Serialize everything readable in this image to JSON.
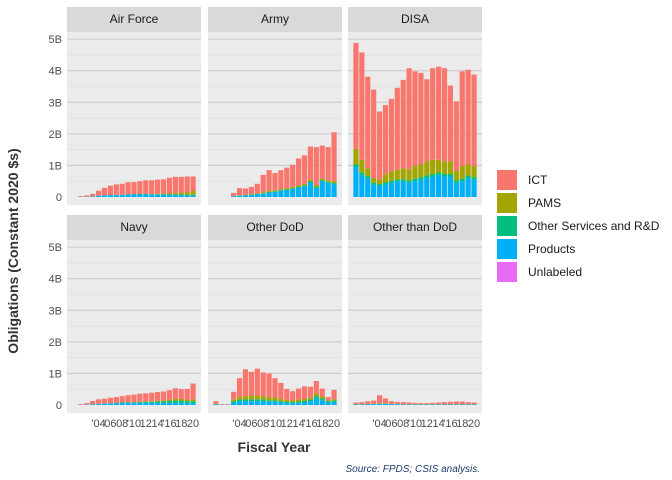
{
  "chart_data": {
    "type": "bar",
    "stacked": true,
    "facets": [
      "Air Force",
      "Army",
      "DISA",
      "Navy",
      "Other DoD",
      "Other than DoD"
    ],
    "years": [
      2000,
      2001,
      2002,
      2003,
      2004,
      2005,
      2006,
      2007,
      2008,
      2009,
      2010,
      2011,
      2012,
      2013,
      2014,
      2015,
      2016,
      2017,
      2018,
      2019,
      2020
    ],
    "x_tick_labels": [
      "'04",
      "06",
      "08",
      "'10",
      "12",
      "14",
      "'16",
      "18",
      "20"
    ],
    "x_tick_years": [
      2004,
      2006,
      2008,
      2010,
      2012,
      2014,
      2016,
      2018,
      2020
    ],
    "y_tick_labels": [
      "0",
      "1B",
      "2B",
      "3B",
      "4B",
      "5B"
    ],
    "y_tick_values": [
      0,
      1,
      2,
      3,
      4,
      5
    ],
    "ylim": [
      0,
      5.1
    ],
    "ylabel": "Obligations (Constant 2020 $s)",
    "xlabel": "Fiscal Year",
    "source": "Source: FPDS; CSIS analysis.",
    "legend_position": "right",
    "grid": true,
    "series": [
      {
        "name": "ICT",
        "color": "#F8766D"
      },
      {
        "name": "PAMS",
        "color": "#A3A500"
      },
      {
        "name": "Other Services and R&D",
        "color": "#00BF7D"
      },
      {
        "name": "Products",
        "color": "#00B0F6"
      },
      {
        "name": "Unlabeled",
        "color": "#E76BF3"
      }
    ],
    "data": {
      "Air Force": {
        "ICT": [
          0,
          0.02,
          0.04,
          0.08,
          0.16,
          0.24,
          0.3,
          0.33,
          0.35,
          0.38,
          0.38,
          0.4,
          0.43,
          0.44,
          0.45,
          0.45,
          0.5,
          0.52,
          0.5,
          0.5,
          0.46
        ],
        "PAMS": [
          0,
          0,
          0,
          0,
          0,
          0,
          0,
          0,
          0,
          0,
          0,
          0,
          0,
          0,
          0.01,
          0.02,
          0.03,
          0.04,
          0.06,
          0.08,
          0.12
        ],
        "Other Services and R&D": [
          0,
          0,
          0,
          0,
          0,
          0,
          0,
          0.01,
          0.01,
          0.01,
          0.01,
          0.02,
          0.02,
          0.02,
          0.02,
          0.02,
          0.02,
          0.02,
          0.02,
          0.02,
          0.02
        ],
        "Products": [
          0,
          0.01,
          0.01,
          0.02,
          0.04,
          0.05,
          0.06,
          0.06,
          0.06,
          0.08,
          0.08,
          0.08,
          0.08,
          0.07,
          0.07,
          0.07,
          0.06,
          0.06,
          0.06,
          0.05,
          0.05
        ],
        "Unlabeled": [
          0,
          0,
          0,
          0,
          0,
          0,
          0,
          0,
          0,
          0,
          0,
          0,
          0,
          0,
          0,
          0,
          0,
          0,
          0,
          0,
          0
        ]
      },
      "Army": {
        "ICT": [
          0,
          0,
          0,
          0.1,
          0.22,
          0.2,
          0.23,
          0.3,
          0.55,
          0.65,
          0.55,
          0.6,
          0.65,
          0.7,
          0.85,
          0.9,
          1.05,
          1.2,
          1.05,
          1.05,
          1.55
        ],
        "PAMS": [
          0,
          0,
          0,
          0,
          0.01,
          0.01,
          0.02,
          0.02,
          0.03,
          0.04,
          0.03,
          0.03,
          0.04,
          0.04,
          0.05,
          0.05,
          0.06,
          0.06,
          0.05,
          0.05,
          0.06
        ],
        "Other Services and R&D": [
          0,
          0,
          0,
          0.01,
          0.01,
          0.01,
          0.01,
          0.02,
          0.02,
          0.02,
          0.02,
          0.02,
          0.02,
          0.02,
          0.02,
          0.03,
          0.03,
          0.04,
          0.03,
          0.03,
          0.04
        ],
        "Products": [
          0,
          0,
          0,
          0.02,
          0.04,
          0.05,
          0.06,
          0.08,
          0.1,
          0.14,
          0.16,
          0.2,
          0.22,
          0.26,
          0.3,
          0.34,
          0.46,
          0.28,
          0.5,
          0.45,
          0.4
        ],
        "Unlabeled": [
          0,
          0,
          0,
          0,
          0,
          0,
          0,
          0,
          0,
          0,
          0,
          0,
          0,
          0,
          0,
          0,
          0,
          0,
          0,
          0,
          0
        ]
      },
      "DISA": {
        "ICT": [
          3.35,
          3.4,
          2.9,
          2.8,
          2.15,
          2.2,
          2.3,
          2.6,
          2.8,
          3.2,
          3.0,
          2.9,
          2.6,
          2.9,
          2.95,
          2.95,
          2.4,
          2.2,
          3.0,
          3.0,
          2.9
        ],
        "PAMS": [
          0.5,
          0.4,
          0.25,
          0.15,
          0.15,
          0.25,
          0.3,
          0.3,
          0.35,
          0.35,
          0.4,
          0.4,
          0.45,
          0.45,
          0.4,
          0.4,
          0.4,
          0.3,
          0.4,
          0.35,
          0.35
        ],
        "Other Services and R&D": [
          0.08,
          0.08,
          0.06,
          0.05,
          0.06,
          0.06,
          0.06,
          0.06,
          0.06,
          0.08,
          0.08,
          0.08,
          0.08,
          0.08,
          0.08,
          0.08,
          0.08,
          0.08,
          0.08,
          0.08,
          0.08
        ],
        "Products": [
          0.95,
          0.7,
          0.6,
          0.4,
          0.35,
          0.4,
          0.45,
          0.5,
          0.5,
          0.45,
          0.5,
          0.55,
          0.6,
          0.65,
          0.7,
          0.65,
          0.65,
          0.45,
          0.5,
          0.6,
          0.55
        ],
        "Unlabeled": [
          0,
          0,
          0,
          0,
          0,
          0,
          0,
          0,
          0,
          0,
          0,
          0,
          0,
          0,
          0,
          0,
          0,
          0,
          0,
          0,
          0
        ]
      },
      "Navy": {
        "ICT": [
          0,
          0.02,
          0.05,
          0.1,
          0.14,
          0.15,
          0.17,
          0.18,
          0.2,
          0.22,
          0.24,
          0.25,
          0.26,
          0.27,
          0.28,
          0.29,
          0.3,
          0.33,
          0.32,
          0.35,
          0.5
        ],
        "PAMS": [
          0,
          0,
          0,
          0,
          0,
          0,
          0,
          0,
          0,
          0.01,
          0.01,
          0.01,
          0.01,
          0.02,
          0.02,
          0.03,
          0.04,
          0.06,
          0.05,
          0.04,
          0.06
        ],
        "Other Services and R&D": [
          0,
          0,
          0,
          0.01,
          0.01,
          0.01,
          0.01,
          0.02,
          0.02,
          0.02,
          0.02,
          0.03,
          0.03,
          0.03,
          0.04,
          0.04,
          0.06,
          0.07,
          0.07,
          0.06,
          0.06
        ],
        "Products": [
          0,
          0.01,
          0.01,
          0.02,
          0.03,
          0.04,
          0.05,
          0.05,
          0.06,
          0.06,
          0.06,
          0.07,
          0.07,
          0.07,
          0.07,
          0.07,
          0.07,
          0.07,
          0.07,
          0.06,
          0.06
        ],
        "Unlabeled": [
          0,
          0,
          0,
          0,
          0,
          0,
          0,
          0,
          0,
          0,
          0,
          0,
          0,
          0,
          0,
          0,
          0,
          0,
          0,
          0,
          0
        ]
      },
      "Other DoD": {
        "ICT": [
          0.08,
          0.02,
          0.02,
          0.25,
          0.6,
          0.85,
          0.75,
          0.85,
          0.75,
          0.75,
          0.6,
          0.5,
          0.35,
          0.3,
          0.35,
          0.4,
          0.35,
          0.4,
          0.25,
          0.1,
          0.3
        ],
        "PAMS": [
          0.01,
          0,
          0,
          0.05,
          0.08,
          0.1,
          0.12,
          0.12,
          0.1,
          0.1,
          0.1,
          0.08,
          0.06,
          0.05,
          0.06,
          0.06,
          0.06,
          0.08,
          0.06,
          0.03,
          0.04
        ],
        "Other Services and R&D": [
          0.01,
          0,
          0,
          0.04,
          0.05,
          0.06,
          0.06,
          0.06,
          0.06,
          0.05,
          0.05,
          0.04,
          0.04,
          0.03,
          0.04,
          0.05,
          0.05,
          0.08,
          0.06,
          0.04,
          0.04
        ],
        "Products": [
          0.02,
          0.01,
          0.01,
          0.08,
          0.12,
          0.12,
          0.12,
          0.12,
          0.12,
          0.1,
          0.1,
          0.08,
          0.06,
          0.06,
          0.07,
          0.08,
          0.12,
          0.2,
          0.15,
          0.08,
          0.1
        ],
        "Unlabeled": [
          0,
          0,
          0,
          0,
          0,
          0,
          0,
          0,
          0,
          0,
          0,
          0,
          0,
          0,
          0,
          0,
          0,
          0,
          0,
          0,
          0
        ]
      },
      "Other than DoD": {
        "ICT": [
          0.05,
          0.06,
          0.08,
          0.1,
          0.25,
          0.15,
          0.08,
          0.06,
          0.06,
          0.05,
          0.04,
          0.03,
          0.03,
          0.04,
          0.05,
          0.06,
          0.07,
          0.08,
          0.08,
          0.06,
          0.05
        ],
        "PAMS": [
          0.01,
          0.01,
          0.01,
          0.01,
          0.02,
          0.02,
          0.01,
          0.01,
          0.01,
          0.01,
          0.01,
          0.01,
          0.01,
          0.01,
          0.01,
          0.01,
          0.01,
          0.01,
          0.01,
          0.01,
          0.01
        ],
        "Other Services and R&D": [
          0,
          0,
          0,
          0,
          0,
          0,
          0,
          0,
          0,
          0,
          0,
          0,
          0,
          0,
          0,
          0,
          0,
          0,
          0,
          0,
          0
        ],
        "Products": [
          0.02,
          0.02,
          0.03,
          0.03,
          0.04,
          0.04,
          0.03,
          0.03,
          0.02,
          0.02,
          0.02,
          0.02,
          0.02,
          0.02,
          0.02,
          0.02,
          0.02,
          0.02,
          0.02,
          0.02,
          0.02
        ],
        "Unlabeled": [
          0,
          0,
          0,
          0,
          0,
          0,
          0,
          0,
          0,
          0,
          0,
          0,
          0,
          0,
          0,
          0,
          0,
          0,
          0,
          0,
          0
        ]
      }
    }
  }
}
